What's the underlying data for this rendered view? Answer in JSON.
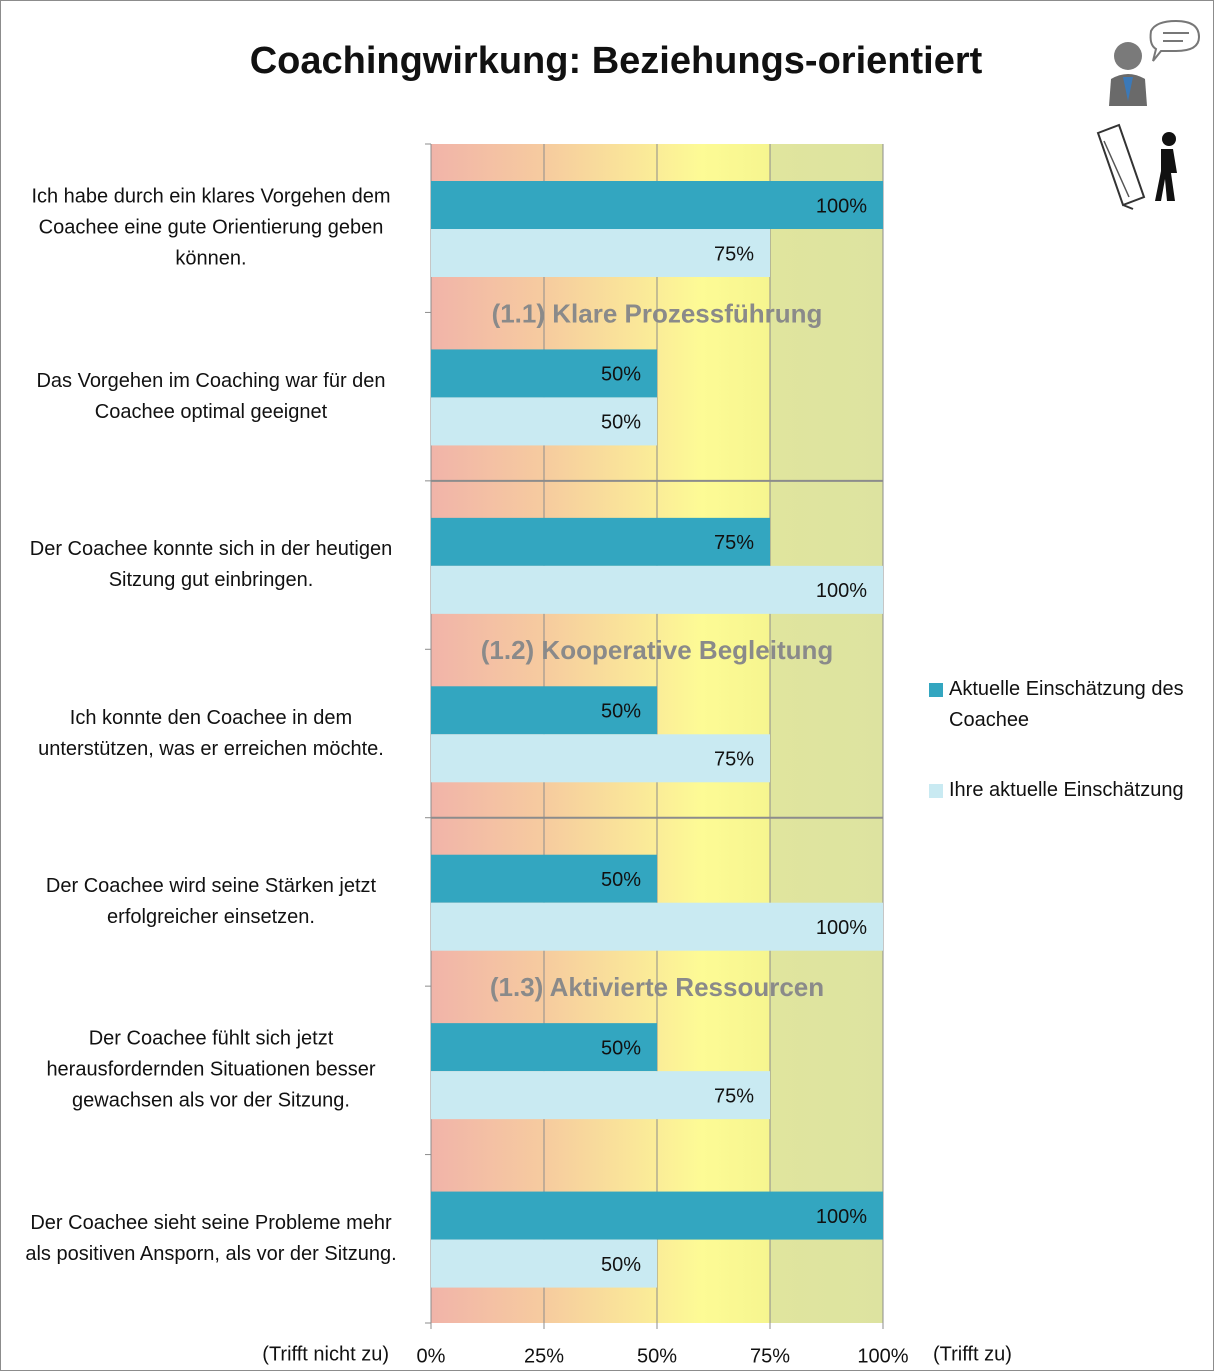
{
  "chart_data": {
    "type": "grouped-horizontal-bar",
    "title": "Coachingwirkung: Beziehungs-orientiert",
    "categories": [
      "Ich habe durch ein klares Vorgehen dem Coachee eine gute Orientierung geben können.",
      "Das Vorgehen im Coaching war für den Coachee optimal geeignet",
      "Der Coachee konnte sich in der heutigen Sitzung gut einbringen.",
      "Ich konnte den Coachee in dem unterstützen, was er erreichen möchte.",
      "Der Coachee wird seine Stärken jetzt erfolgreicher einsetzen.",
      "Der Coachee fühlt sich jetzt herausfordernden Situationen besser gewachsen als vor der Sitzung.",
      "Der Coachee sieht seine Probleme mehr als positiven Ansporn, als vor der Sitzung."
    ],
    "series": [
      {
        "name": "Aktuelle Einschätzung des Coachee",
        "color": "#33a6c0",
        "values": [
          100,
          50,
          75,
          50,
          50,
          50,
          100
        ],
        "value_labels": [
          "100%",
          "50%",
          "75%",
          "50%",
          "50%",
          "50%",
          "100%"
        ]
      },
      {
        "name": "Ihre aktuelle Einschätzung",
        "color": "#c9eaf2",
        "values": [
          75,
          50,
          100,
          75,
          100,
          75,
          50
        ],
        "value_labels": [
          "75%",
          "50%",
          "100%",
          "75%",
          "100%",
          "75%",
          "50%"
        ]
      }
    ],
    "annotations": [
      "(1.1) Klare Prozessführung",
      "(1.2) Kooperative Begleitung",
      "(1.3) Aktivierte Ressourcen"
    ],
    "xlabel_low": "(Trifft nicht zu)",
    "xlabel_high": "(Trifft zu)",
    "xlim": [
      0,
      100
    ],
    "xticks": [
      {
        "value": 0,
        "label": "0%"
      },
      {
        "value": 25,
        "label": "25%"
      },
      {
        "value": 50,
        "label": "50%"
      },
      {
        "value": 75,
        "label": "75%"
      },
      {
        "value": 100,
        "label": "100%"
      }
    ],
    "grid": true,
    "legend": "right"
  }
}
